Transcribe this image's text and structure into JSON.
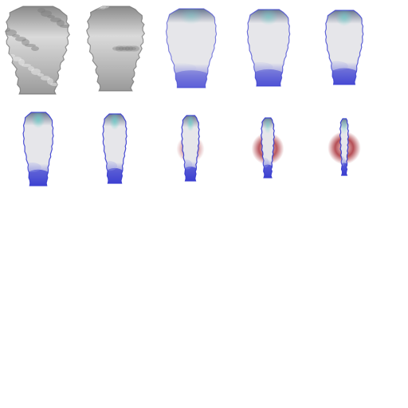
{
  "sprite_sheet": {
    "background": "#ffffff",
    "frames": [
      {
        "index": 1,
        "mode": "gray",
        "glow": 0.0,
        "blue": 0.0,
        "red": 0.0
      },
      {
        "index": 2,
        "mode": "gray",
        "glow": 0.0,
        "blue": 0.05,
        "red": 0.0
      },
      {
        "index": 3,
        "mode": "tint",
        "glow": 0.35,
        "blue": 0.25,
        "red": 0.0
      },
      {
        "index": 4,
        "mode": "tint",
        "glow": 0.5,
        "blue": 0.45,
        "red": 0.0
      },
      {
        "index": 5,
        "mode": "tint",
        "glow": 0.6,
        "blue": 0.6,
        "red": 0.0
      },
      {
        "index": 6,
        "mode": "tint",
        "glow": 0.7,
        "blue": 0.8,
        "red": 0.0
      },
      {
        "index": 7,
        "mode": "tint",
        "glow": 0.7,
        "blue": 0.85,
        "red": 0.0
      },
      {
        "index": 8,
        "mode": "tint",
        "glow": 0.7,
        "blue": 0.9,
        "red": 0.45
      },
      {
        "index": 9,
        "mode": "tint",
        "glow": 0.5,
        "blue": 0.9,
        "red": 0.8
      },
      {
        "index": 10,
        "mode": "tint",
        "glow": 0.4,
        "blue": 0.95,
        "red": 0.85
      }
    ],
    "colors": {
      "gray_dark": "#8a8a8a",
      "gray_light": "#dadada",
      "body_light": "#e6e6ea",
      "cyan_glow": "#5fd0c8",
      "blue_edge": "#3a3ed0",
      "red_halo": "#a83038"
    }
  }
}
